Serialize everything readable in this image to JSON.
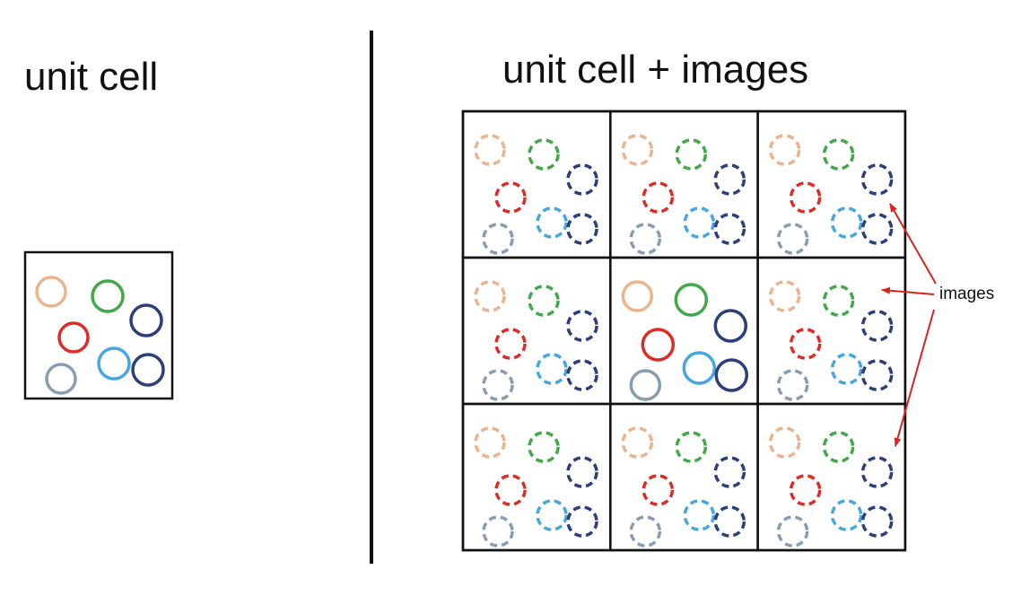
{
  "titles": {
    "left": "unit cell",
    "right": "unit cell + images"
  },
  "annotation": {
    "label": "images",
    "arrow_color": "#d9231f"
  },
  "grid": {
    "rows": 3,
    "cols": 3,
    "original_cell": {
      "row": 1,
      "col": 1
    },
    "image_cells": "dashed"
  },
  "particles": [
    {
      "name": "particle-peach",
      "color": "#eab48f"
    },
    {
      "name": "particle-green",
      "color": "#43a84a"
    },
    {
      "name": "particle-navy-top",
      "color": "#2c3f7a"
    },
    {
      "name": "particle-red",
      "color": "#dd2b26"
    },
    {
      "name": "particle-lightblue",
      "color": "#48a6e0"
    },
    {
      "name": "particle-navy-bottom",
      "color": "#2c3f7a"
    },
    {
      "name": "particle-gray",
      "color": "#8a9cb0"
    }
  ]
}
